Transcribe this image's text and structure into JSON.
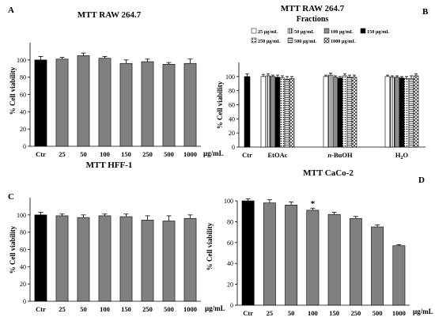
{
  "figure_unit": "µg/mL",
  "chart_data": [
    {
      "id": "A",
      "type": "bar",
      "panel_label": "A",
      "title": "MTT RAW 264.7",
      "ylabel": "% Cell viability",
      "xunit": "µg/mL",
      "ylim": [
        0,
        120
      ],
      "yticks": [
        0,
        20,
        40,
        60,
        80,
        100
      ],
      "categories": [
        "Ctr",
        "25",
        "50",
        "100",
        "150",
        "250",
        "500",
        "1000"
      ],
      "values": [
        100,
        101,
        105,
        102,
        96,
        98,
        95,
        96
      ],
      "errors": [
        4,
        2,
        3,
        2,
        4,
        3,
        2,
        5
      ],
      "colors": [
        "#000000",
        "#808080",
        "#808080",
        "#808080",
        "#808080",
        "#808080",
        "#808080",
        "#808080"
      ],
      "annotations": []
    },
    {
      "id": "B",
      "type": "bar",
      "panel_label": "B",
      "title": "MTT RAW 264.7",
      "subtitle": "Fractions",
      "ylabel": "% Cell viability",
      "ylim": [
        0,
        120
      ],
      "yticks": [
        0,
        20,
        40,
        60,
        80,
        100
      ],
      "control": {
        "label": "Ctr",
        "value": 100,
        "error": 4,
        "color": "#000000"
      },
      "legend_placement": "top",
      "legend": [
        {
          "label": "25 µg/mL",
          "pattern": "white"
        },
        {
          "label": "50 µg/mL",
          "pattern": "vlines"
        },
        {
          "label": "100 µg/mL",
          "pattern": "gray"
        },
        {
          "label": "150 µg/mL",
          "pattern": "black"
        },
        {
          "label": "250 µg/mL",
          "pattern": "dots"
        },
        {
          "label": "500 µg/mL",
          "pattern": "hlines"
        },
        {
          "label": "1000 µg/mL",
          "pattern": "diag"
        }
      ],
      "groups": [
        {
          "label": "EtOAc",
          "values": [
            100,
            101,
            100,
            99,
            98,
            96,
            97
          ],
          "errors": [
            3,
            3,
            2,
            3,
            3,
            4,
            3
          ]
        },
        {
          "label": "n-BuOH",
          "values": [
            100,
            102,
            99,
            98,
            101,
            99,
            99
          ],
          "errors": [
            2,
            3,
            2,
            2,
            3,
            3,
            3
          ]
        },
        {
          "label": "H2O",
          "values": [
            100,
            99,
            99,
            98,
            97,
            97,
            101
          ],
          "errors": [
            2,
            2,
            2,
            2,
            3,
            4,
            3
          ]
        }
      ]
    },
    {
      "id": "C",
      "type": "bar",
      "panel_label": "C",
      "title": "MTT HFF-1",
      "ylabel": "% Cell viability",
      "xunit": "µg/mL",
      "ylim": [
        0,
        120
      ],
      "yticks": [
        0,
        20,
        40,
        60,
        80,
        100
      ],
      "categories": [
        "Ctr",
        "25",
        "50",
        "100",
        "150",
        "250",
        "500",
        "1000"
      ],
      "values": [
        100,
        99,
        97,
        99,
        98,
        94,
        93,
        96
      ],
      "errors": [
        3,
        2,
        3,
        2,
        3,
        5,
        6,
        4
      ],
      "colors": [
        "#000000",
        "#808080",
        "#808080",
        "#808080",
        "#808080",
        "#808080",
        "#808080",
        "#808080"
      ],
      "annotations": []
    },
    {
      "id": "D",
      "type": "bar",
      "panel_label": "D",
      "title": "MTT CaCo-2",
      "ylabel": "% Cell viability",
      "xunit": "µg/mL",
      "ylim": [
        0,
        100
      ],
      "yticks": [
        0,
        20,
        40,
        60,
        80,
        100
      ],
      "categories": [
        "Ctr",
        "25",
        "50",
        "100",
        "150",
        "250",
        "500",
        "1000"
      ],
      "values": [
        100,
        98,
        96,
        91,
        87,
        83,
        75,
        57
      ],
      "errors": [
        2,
        3,
        3,
        2,
        2,
        2,
        2,
        1
      ],
      "colors": [
        "#000000",
        "#808080",
        "#808080",
        "#808080",
        "#808080",
        "#808080",
        "#808080",
        "#808080"
      ],
      "annotations": [
        {
          "category": "100",
          "text": "*"
        }
      ]
    }
  ]
}
